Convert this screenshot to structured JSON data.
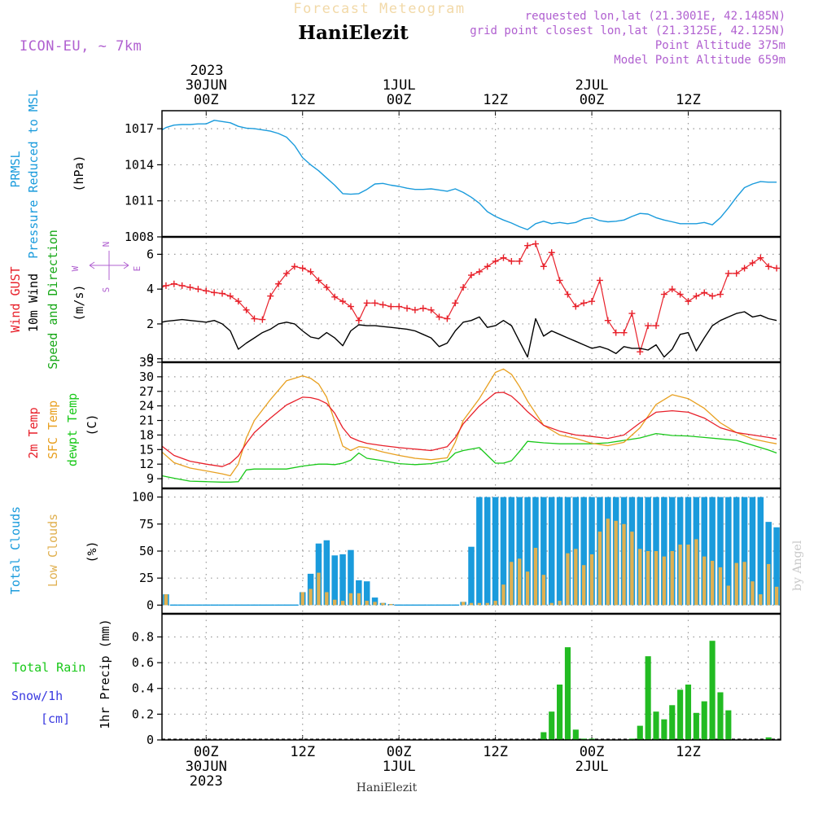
{
  "header": {
    "title_faint": "Forecast Meteogram",
    "station": "HaniElezit",
    "model": "ICON-EU, ~ 7km",
    "info": [
      "requested lon,lat (21.3001E, 42.1485N)",
      "grid point closest lon,lat (21.3125E, 42.125N)",
      "Point Altitude 375m",
      "Model Point Altitude 659m"
    ],
    "footer_station": "HaniElezit",
    "watermark": "by Angel"
  },
  "time_axis": {
    "top_year": "2023",
    "labels": [
      {
        "hour": 0,
        "lines": [
          "30JUN",
          "00Z"
        ]
      },
      {
        "hour": 12,
        "lines": [
          "12Z"
        ]
      },
      {
        "hour": 24,
        "lines": [
          "1JUL",
          "00Z"
        ]
      },
      {
        "hour": 36,
        "lines": [
          "12Z"
        ]
      },
      {
        "hour": 48,
        "lines": [
          "2JUL",
          "00Z"
        ]
      },
      {
        "hour": 60,
        "lines": [
          "12Z"
        ]
      }
    ],
    "bottom_labels": [
      {
        "hour": 0,
        "lines": [
          "00Z",
          "30JUN",
          "2023"
        ]
      },
      {
        "hour": 12,
        "lines": [
          "12Z"
        ]
      },
      {
        "hour": 24,
        "lines": [
          "00Z",
          "1JUL"
        ]
      },
      {
        "hour": 36,
        "lines": [
          "12Z"
        ]
      },
      {
        "hour": 48,
        "lines": [
          "00Z",
          "2JUL"
        ]
      },
      {
        "hour": 60,
        "lines": [
          "12Z"
        ]
      }
    ],
    "hour_range": [
      -5.5,
      71.5
    ]
  },
  "chart_data": [
    {
      "type": "line",
      "panel": "pressure",
      "labels": [
        {
          "text": "PRMSL",
          "color": "#1a9bdc"
        },
        {
          "text": "Pressure Reduced to MSL",
          "color": "#1a9bdc"
        },
        {
          "text": "(hPa)",
          "color": "#000000"
        }
      ],
      "ylim": [
        1008,
        1018.5
      ],
      "yticks": [
        1008,
        1011,
        1014,
        1017
      ],
      "x": [
        -5.5,
        -5,
        -4,
        -3,
        -2,
        -1,
        0,
        1,
        2,
        3,
        4,
        5,
        6,
        7,
        8,
        9,
        10,
        11,
        12,
        13,
        14,
        15,
        16,
        17,
        18,
        19,
        20,
        21,
        22,
        23,
        24,
        25,
        26,
        27,
        28,
        29,
        30,
        31,
        32,
        33,
        34,
        35,
        36,
        37,
        38,
        39,
        40,
        41,
        42,
        43,
        44,
        45,
        46,
        47,
        48,
        49,
        50,
        51,
        52,
        53,
        54,
        55,
        56,
        57,
        58,
        59,
        60,
        61,
        62,
        63,
        64,
        65,
        66,
        67,
        68,
        69,
        70,
        71
      ],
      "series": [
        {
          "color": "#1a9bdc",
          "values": [
            1016.9,
            1017.1,
            1017.3,
            1017.35,
            1017.35,
            1017.4,
            1017.4,
            1017.7,
            1017.6,
            1017.5,
            1017.2,
            1017.05,
            1017,
            1016.9,
            1016.8,
            1016.6,
            1016.3,
            1015.6,
            1014.6,
            1014,
            1013.5,
            1012.9,
            1012.3,
            1011.6,
            1011.55,
            1011.6,
            1011.95,
            1012.4,
            1012.45,
            1012.3,
            1012.2,
            1012.05,
            1011.95,
            1011.95,
            1012,
            1011.9,
            1011.8,
            1012,
            1011.7,
            1011.3,
            1010.8,
            1010.1,
            1009.7,
            1009.4,
            1009.15,
            1008.85,
            1008.6,
            1009.1,
            1009.3,
            1009.1,
            1009.2,
            1009.1,
            1009.2,
            1009.5,
            1009.6,
            1009.35,
            1009.25,
            1009.3,
            1009.4,
            1009.7,
            1009.95,
            1009.9,
            1009.6,
            1009.4,
            1009.25,
            1009.1,
            1009.1,
            1009.1,
            1009.2,
            1009,
            1009.6,
            1010.4,
            1011.3,
            1012.1,
            1012.4,
            1012.6,
            1012.55,
            1012.55
          ]
        }
      ]
    },
    {
      "type": "line",
      "panel": "wind",
      "labels": [
        {
          "text": "Wind GUST",
          "color": "#e8202a"
        },
        {
          "text": "10m Wind",
          "color": "#000000"
        },
        {
          "text": "Speed and Direction",
          "color": "#18a818"
        },
        {
          "text": "(m/s)",
          "color": "#000000"
        }
      ],
      "compass": [
        "N",
        "W",
        "E",
        "S"
      ],
      "ylim": [
        -0.2,
        7
      ],
      "yticks": [
        0,
        2,
        4,
        6
      ],
      "x": [
        -5.5,
        -5,
        -4,
        -3,
        -2,
        -1,
        0,
        1,
        2,
        3,
        4,
        5,
        6,
        7,
        8,
        9,
        10,
        11,
        12,
        13,
        14,
        15,
        16,
        17,
        18,
        19,
        20,
        21,
        22,
        23,
        24,
        25,
        26,
        27,
        28,
        29,
        30,
        31,
        32,
        33,
        34,
        35,
        36,
        37,
        38,
        39,
        40,
        41,
        42,
        43,
        44,
        45,
        46,
        47,
        48,
        49,
        50,
        51,
        52,
        53,
        54,
        55,
        56,
        57,
        58,
        59,
        60,
        61,
        62,
        63,
        64,
        65,
        66,
        67,
        68,
        69,
        70,
        71
      ],
      "series": [
        {
          "name": "Wind GUST",
          "color": "#e8202a",
          "values": [
            4.1,
            4.2,
            4.3,
            4.2,
            4.1,
            4.0,
            3.9,
            3.8,
            3.75,
            3.6,
            3.3,
            2.8,
            2.3,
            2.25,
            3.6,
            4.3,
            4.9,
            5.3,
            5.2,
            5.0,
            4.5,
            4.1,
            3.55,
            3.3,
            3.0,
            2.2,
            3.2,
            3.2,
            3.1,
            3.0,
            3.0,
            2.9,
            2.8,
            2.9,
            2.8,
            2.4,
            2.3,
            3.2,
            4.1,
            4.8,
            5.0,
            5.3,
            5.6,
            5.8,
            5.6,
            5.6,
            6.5,
            6.6,
            5.3,
            6.1,
            4.5,
            3.7,
            3.0,
            3.2,
            3.3,
            4.5,
            2.2,
            1.5,
            1.5,
            2.6,
            0.4,
            1.9,
            1.9,
            3.7,
            4.0,
            3.7,
            3.3,
            3.6,
            3.8,
            3.6,
            3.7,
            4.9,
            4.9,
            5.2,
            5.5,
            5.8,
            5.3,
            5.2
          ]
        },
        {
          "name": "10m Wind",
          "color": "#000000",
          "values": [
            2.1,
            2.15,
            2.2,
            2.25,
            2.2,
            2.15,
            2.1,
            2.2,
            2.0,
            1.6,
            0.55,
            0.9,
            1.2,
            1.5,
            1.7,
            2.0,
            2.1,
            2.0,
            1.6,
            1.25,
            1.15,
            1.5,
            1.2,
            0.75,
            1.6,
            1.95,
            1.9,
            1.9,
            1.85,
            1.8,
            1.75,
            1.7,
            1.6,
            1.4,
            1.2,
            0.7,
            0.9,
            1.6,
            2.1,
            2.2,
            2.4,
            1.8,
            1.9,
            2.2,
            1.9,
            1.0,
            0.1,
            2.3,
            1.3,
            1.6,
            1.4,
            1.2,
            1.0,
            0.8,
            0.6,
            0.7,
            0.55,
            0.3,
            0.7,
            0.6,
            0.6,
            0.5,
            0.8,
            0.1,
            0.55,
            1.4,
            1.5,
            0.45,
            1.2,
            1.9,
            2.2,
            2.4,
            2.6,
            2.7,
            2.4,
            2.5,
            2.3,
            2.2
          ]
        }
      ]
    },
    {
      "type": "line",
      "panel": "temperature",
      "labels": [
        {
          "text": "2m Temp",
          "color": "#e8202a"
        },
        {
          "text": "SFC Temp",
          "color": "#e8a020"
        },
        {
          "text": "dewpt Temp",
          "color": "#18c818"
        },
        {
          "text": "(C)",
          "color": "#000000"
        }
      ],
      "ylim": [
        7,
        33
      ],
      "yticks": [
        9,
        12,
        15,
        18,
        21,
        24,
        27,
        30,
        33
      ],
      "x": [
        -5.5,
        -4,
        -2,
        0,
        2,
        3,
        4,
        5,
        6,
        8,
        10,
        12,
        13,
        14,
        15,
        16,
        17,
        18,
        19,
        20,
        22,
        24,
        26,
        28,
        30,
        31,
        32,
        34,
        36,
        37,
        38,
        39,
        40,
        42,
        44,
        46,
        48,
        50,
        52,
        54,
        56,
        58,
        60,
        62,
        64,
        66,
        68,
        70,
        71
      ],
      "series": [
        {
          "name": "2m Temp",
          "color": "#e8202a",
          "values": [
            15.7,
            13.8,
            12.6,
            12,
            11.5,
            12.2,
            13.7,
            16.3,
            18.5,
            21.5,
            24.2,
            25.8,
            25.7,
            25.3,
            24.5,
            22.5,
            19.5,
            17.5,
            16.8,
            16.3,
            15.8,
            15.4,
            15.1,
            14.8,
            15.6,
            17.5,
            20.3,
            24,
            26.7,
            26.8,
            26,
            24.5,
            22.8,
            20,
            18.8,
            18,
            17.7,
            17.3,
            18,
            20.5,
            22.7,
            23,
            22.7,
            21.5,
            19.5,
            18.5,
            18,
            17.5,
            17.2
          ]
        },
        {
          "name": "SFC Temp",
          "color": "#e8a020",
          "values": [
            14.5,
            12.3,
            11.2,
            10.6,
            10,
            9.6,
            12,
            17.4,
            21,
            25.3,
            29.2,
            30.2,
            29.7,
            28.5,
            25.8,
            20.8,
            15.7,
            14.8,
            15.6,
            15.4,
            14.5,
            13.8,
            13.2,
            12.9,
            13.3,
            16.5,
            21,
            25.5,
            30.9,
            31.6,
            30.5,
            28,
            25,
            20,
            18,
            17.3,
            16.3,
            15.8,
            16.5,
            19.5,
            24.3,
            26.3,
            25.5,
            23.5,
            20.5,
            18.5,
            17.2,
            16.5,
            16.2
          ]
        },
        {
          "name": "dewpt Temp",
          "color": "#18c818",
          "values": [
            9.6,
            9.1,
            8.5,
            8.4,
            8.3,
            8.3,
            8.4,
            10.8,
            11,
            11,
            11,
            11.6,
            11.8,
            12,
            12,
            11.9,
            12.2,
            12.8,
            14.3,
            13.2,
            12.7,
            12.1,
            11.9,
            12.1,
            12.7,
            14.3,
            14.8,
            15.4,
            12.2,
            12.2,
            12.7,
            14.6,
            16.7,
            16.4,
            16.2,
            16.2,
            16.2,
            16.4,
            16.9,
            17.4,
            18.3,
            17.9,
            17.8,
            17.5,
            17.2,
            16.9,
            15.9,
            14.9,
            14.3
          ]
        }
      ]
    },
    {
      "type": "bar",
      "panel": "clouds",
      "labels": [
        {
          "text": "Total Clouds",
          "color": "#1a9bdc"
        },
        {
          "text": "Low Clouds",
          "color": "#e0b050"
        },
        {
          "text": "(%)",
          "color": "#000000"
        }
      ],
      "ylim": [
        -8,
        108
      ],
      "yticks": [
        0,
        25,
        50,
        75,
        100
      ],
      "x": [
        -5,
        -4,
        -3,
        -2,
        -1,
        0,
        1,
        2,
        3,
        4,
        5,
        6,
        7,
        8,
        9,
        10,
        11,
        12,
        13,
        14,
        15,
        16,
        17,
        18,
        19,
        20,
        21,
        22,
        23,
        24,
        25,
        26,
        27,
        28,
        29,
        30,
        31,
        32,
        33,
        34,
        35,
        36,
        37,
        38,
        39,
        40,
        41,
        42,
        43,
        44,
        45,
        46,
        47,
        48,
        49,
        50,
        51,
        52,
        53,
        54,
        55,
        56,
        57,
        58,
        59,
        60,
        61,
        62,
        63,
        64,
        65,
        66,
        67,
        68,
        69,
        70,
        71
      ],
      "series": [
        {
          "name": "Total Clouds",
          "color": "#1a9bdc",
          "values": [
            10,
            0,
            0,
            0,
            0,
            0,
            0,
            0,
            0,
            0,
            0,
            0,
            0,
            0,
            0,
            0,
            0,
            12,
            29,
            57,
            60,
            46,
            47,
            51,
            23,
            22,
            7,
            2,
            1,
            0,
            0,
            0,
            0,
            0,
            0,
            0,
            0,
            3,
            54,
            100,
            100,
            100,
            100,
            100,
            100,
            100,
            100,
            100,
            100,
            100,
            100,
            100,
            100,
            100,
            100,
            100,
            100,
            100,
            100,
            100,
            100,
            100,
            100,
            100,
            100,
            100,
            100,
            100,
            100,
            100,
            100,
            100,
            100,
            100,
            100,
            77,
            72
          ]
        },
        {
          "name": "Low Clouds",
          "color": "#e0b050",
          "values": [
            10,
            0,
            0,
            0,
            0,
            0,
            0,
            0,
            0,
            0,
            0,
            0,
            0,
            0,
            0,
            0,
            0,
            12,
            15,
            30,
            12,
            5,
            4,
            11,
            11,
            4,
            3,
            2,
            1,
            0,
            0,
            0,
            0,
            0,
            0,
            0,
            0,
            3,
            2,
            2,
            2,
            4,
            19,
            40,
            43,
            31,
            53,
            28,
            2,
            4,
            48,
            52,
            37,
            47,
            68,
            80,
            78,
            75,
            68,
            52,
            50,
            50,
            45,
            50,
            56,
            56,
            61,
            45,
            41,
            35,
            18,
            39,
            40,
            22,
            10,
            38,
            17
          ]
        }
      ]
    },
    {
      "type": "bar",
      "panel": "precip",
      "labels": [
        {
          "text": "Total Rain",
          "color": "#18c818"
        },
        {
          "text": "Snow/1h",
          "color": "#3a3ae0"
        },
        {
          "text": "[cm]",
          "color": "#3a3ae0"
        },
        {
          "text": "1hr Precip (mm)",
          "color": "#000000"
        }
      ],
      "ylim": [
        0,
        0.98
      ],
      "yticks": [
        0,
        0.2,
        0.4,
        0.6,
        0.8
      ],
      "ytick_labels": [
        "0",
        "0.2",
        "0.4",
        "0.6",
        "0.8"
      ],
      "x": [
        42,
        43,
        44,
        45,
        46,
        47,
        48,
        53,
        54,
        55,
        56,
        57,
        58,
        59,
        60,
        61,
        62,
        63,
        64,
        65,
        66,
        67,
        70
      ],
      "series": [
        {
          "name": "Total Rain",
          "color": "#22bb22",
          "values": [
            0.06,
            0.22,
            0.43,
            0.72,
            0.08,
            0.01,
            0.01,
            0.01,
            0.11,
            0.65,
            0.22,
            0.16,
            0.27,
            0.39,
            0.43,
            0.21,
            0.3,
            0.77,
            0.37,
            0.23,
            0.0,
            0.0,
            0.02
          ]
        }
      ]
    }
  ]
}
